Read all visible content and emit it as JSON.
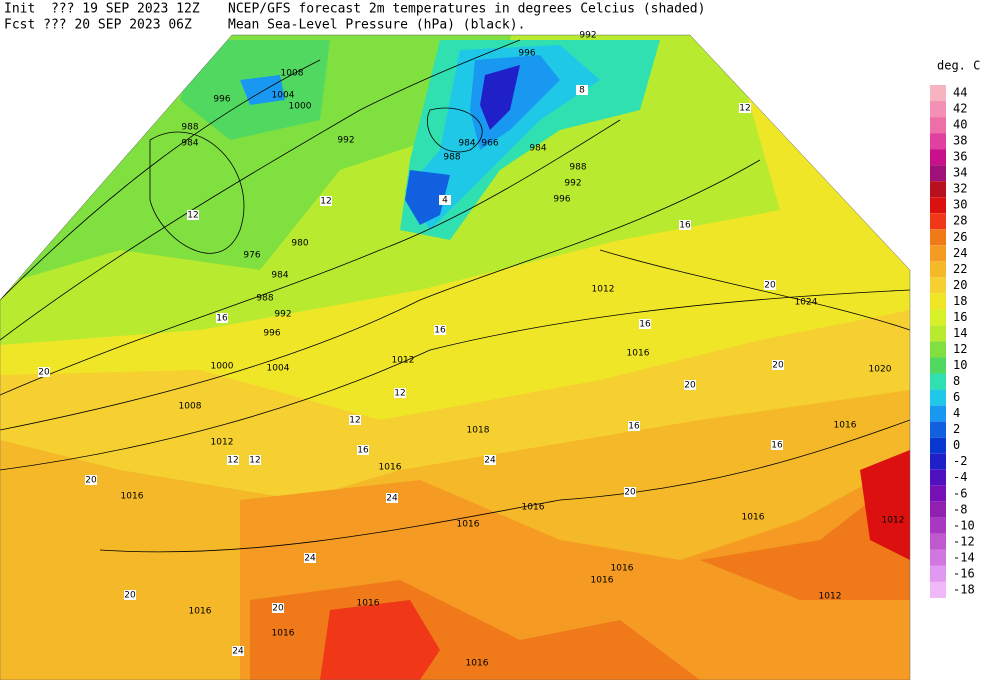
{
  "header": {
    "init": "Init  ??? 19 SEP 2023 12Z",
    "fcst": "Fcst ??? 20 SEP 2023 06Z",
    "title": "NCEP/GFS forecast 2m temperatures in degrees Celcius (shaded)",
    "subtitle": "Mean Sea-Level Pressure (hPa) (black)."
  },
  "legend": {
    "title": "deg. C",
    "values": [
      44,
      42,
      40,
      38,
      36,
      34,
      32,
      30,
      28,
      26,
      24,
      22,
      20,
      18,
      16,
      14,
      12,
      10,
      8,
      6,
      4,
      2,
      0,
      -2,
      -4,
      -6,
      -8,
      -10,
      -12,
      -14,
      -16,
      -18
    ],
    "colors": [
      "#f7b3c0",
      "#f590b5",
      "#ee6fa8",
      "#e040a0",
      "#c8108c",
      "#a0107a",
      "#b8101e",
      "#dd1010",
      "#f03818",
      "#f07a1a",
      "#f59a22",
      "#f5b828",
      "#f5d030",
      "#f0e628",
      "#d8f028",
      "#b8ea30",
      "#80e040",
      "#50d860",
      "#30e0b0",
      "#20c8e8",
      "#1898f0",
      "#1060e0",
      "#0838d0",
      "#2020c8",
      "#5010c0",
      "#7810b8",
      "#9020b0",
      "#a838c0",
      "#c058d0",
      "#d078e0",
      "#e098f0",
      "#f0b8f8"
    ]
  },
  "isobar_labels": [
    1008,
    1004,
    996,
    1000,
    988,
    984,
    992,
    976,
    980,
    984,
    988,
    992,
    996,
    1000,
    1004,
    1008,
    1012,
    1016,
    1012,
    1016,
    1016,
    1016,
    1016,
    1016,
    1016,
    1012,
    1012,
    1016,
    1020,
    1024,
    1012,
    1016,
    1018,
    996,
    992,
    984,
    988,
    966,
    984,
    988,
    992,
    996,
    1016,
    1016,
    1016,
    1016
  ],
  "temperature_labels": [
    12,
    12,
    16,
    20,
    20,
    12,
    12,
    24,
    24,
    16,
    16,
    20,
    16,
    12,
    8,
    4,
    20,
    16,
    16,
    20,
    20,
    24,
    20,
    20,
    24,
    12,
    16,
    12
  ]
}
